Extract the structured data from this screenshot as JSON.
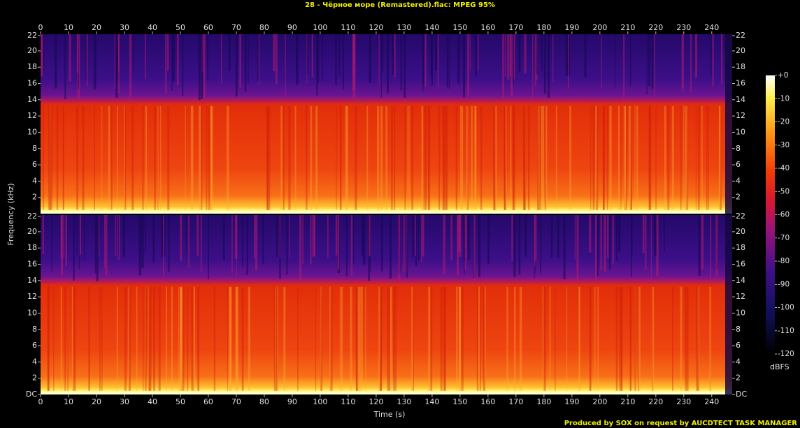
{
  "chart_data": {
    "type": "spectrogram",
    "title": "28 - Чёрное море (Remastered).flac: MPEG 95%",
    "x_label": "Time (s)",
    "y_label": "Frequency (kHz)",
    "xlim": [
      0,
      247.3
    ],
    "xticks": [
      0,
      10,
      20,
      30,
      40,
      50,
      60,
      70,
      80,
      90,
      100,
      110,
      120,
      130,
      140,
      150,
      160,
      170,
      180,
      190,
      200,
      210,
      220,
      230,
      240
    ],
    "channels": [
      {
        "ylim": [
          0,
          22.05
        ],
        "yticks": [
          2,
          4,
          6,
          8,
          10,
          12,
          14,
          16,
          18,
          20,
          22
        ]
      },
      {
        "ylim": [
          0,
          22.05
        ],
        "yticks": [
          {
            "value": 0,
            "label": "DC"
          },
          2,
          4,
          6,
          8,
          10,
          12,
          14,
          16,
          18,
          20,
          22
        ]
      }
    ],
    "colorbar": {
      "label": "dBFS",
      "lim": [
        -120,
        0
      ],
      "ticks": [
        {
          "value": 0,
          "label": "+0"
        },
        -10,
        -20,
        -30,
        -40,
        -50,
        -60,
        -70,
        -80,
        -90,
        -100,
        -110,
        -120
      ]
    },
    "footer": "Produced by SOX on request by AUCDTECT TASK MANAGER"
  }
}
